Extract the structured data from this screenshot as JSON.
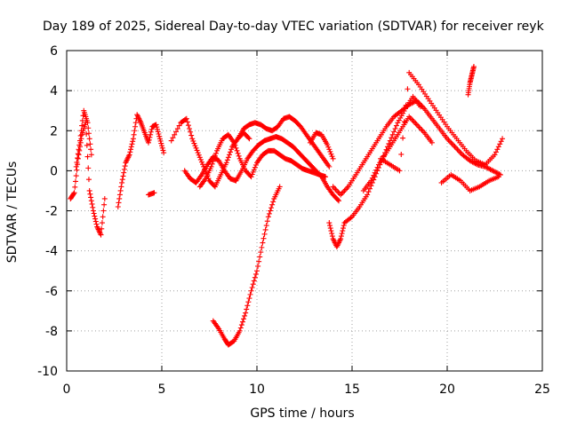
{
  "chart_data": {
    "type": "scatter",
    "title": "Day 189 of 2025, Sidereal Day-to-day VTEC variation (SDTVAR) for receiver reyk",
    "xlabel": "GPS time / hours",
    "ylabel": "SDTVAR / TECUs",
    "xlim": [
      0,
      25
    ],
    "ylim": [
      -10,
      6
    ],
    "xticks": [
      0,
      5,
      10,
      15,
      20,
      25
    ],
    "yticks": [
      -10,
      -8,
      -6,
      -4,
      -2,
      0,
      2,
      4,
      6
    ],
    "xtick_labels": [
      "0",
      "5",
      "10",
      "15",
      "20",
      "25"
    ],
    "ytick_labels": [
      "-10",
      "-8",
      "-6",
      "-4",
      "-2",
      "0",
      "2",
      "4",
      "6"
    ],
    "grid": true,
    "marker": "plus",
    "color": "#ff0000",
    "series": [
      {
        "name": "s1",
        "x": [
          0.2,
          0.4,
          0.6,
          0.8,
          1.0,
          1.2,
          1.4,
          1.6,
          1.8,
          2.0
        ],
        "y": [
          -1.4,
          -1.1,
          0.6,
          1.8,
          2.4,
          -1.0,
          -2.0,
          -2.8,
          -3.2,
          -1.4
        ]
      },
      {
        "name": "s2",
        "x": [
          0.5,
          0.7,
          0.9,
          1.1,
          1.3
        ],
        "y": [
          0.2,
          1.5,
          3.0,
          2.4,
          0.8
        ]
      },
      {
        "name": "s3",
        "x": [
          2.7,
          2.9,
          3.1,
          3.3,
          3.5,
          3.7,
          3.9,
          4.1,
          4.3,
          4.5,
          4.7,
          4.9,
          5.1
        ],
        "y": [
          -1.8,
          -0.6,
          0.4,
          0.8,
          1.6,
          2.8,
          2.4,
          1.9,
          1.4,
          2.2,
          2.3,
          1.6,
          0.9
        ]
      },
      {
        "name": "s4",
        "x": [
          4.3,
          4.6
        ],
        "y": [
          -1.2,
          -1.1
        ]
      },
      {
        "name": "s5",
        "x": [
          5.5,
          6.0,
          6.3,
          6.6,
          6.9,
          7.2,
          7.5,
          7.8,
          8.1,
          8.4,
          8.7,
          9.0,
          9.3,
          9.6
        ],
        "y": [
          1.5,
          2.4,
          2.6,
          1.6,
          0.9,
          0.2,
          -0.5,
          -0.8,
          -0.2,
          0.4,
          1.2,
          1.6,
          1.9,
          1.6
        ]
      },
      {
        "name": "s6",
        "x": [
          6.2,
          6.5,
          6.8,
          7.1,
          7.4,
          7.7,
          8.0,
          8.3,
          8.6,
          8.9,
          9.2,
          9.5,
          9.8,
          10.1,
          10.4,
          10.7,
          11.0,
          11.3,
          11.6,
          11.9,
          12.2,
          12.5,
          12.8,
          13.1,
          13.4,
          13.7,
          14.0,
          14.3
        ],
        "y": [
          0.0,
          -0.4,
          -0.6,
          -0.2,
          0.3,
          0.7,
          0.5,
          0.0,
          -0.4,
          -0.5,
          0.0,
          0.6,
          1.0,
          1.3,
          1.5,
          1.6,
          1.7,
          1.6,
          1.4,
          1.2,
          0.9,
          0.6,
          0.3,
          0.0,
          -0.3,
          -0.8,
          -1.2,
          -1.5
        ]
      },
      {
        "name": "s7",
        "x": [
          7.0,
          7.3,
          7.6,
          7.9,
          8.2,
          8.5,
          8.8,
          9.1,
          9.4,
          9.7,
          10.0,
          10.3,
          10.6,
          10.9,
          11.2,
          11.5,
          11.8,
          12.1,
          12.4,
          12.7,
          13.0,
          13.3,
          13.6
        ],
        "y": [
          -0.8,
          -0.4,
          0.2,
          1.0,
          1.6,
          1.8,
          1.4,
          0.6,
          0.0,
          -0.3,
          0.4,
          0.8,
          1.0,
          1.0,
          0.8,
          0.6,
          0.5,
          0.3,
          0.1,
          0.0,
          -0.1,
          -0.2,
          -0.3
        ]
      },
      {
        "name": "s8",
        "x": [
          9.0,
          9.3,
          9.6,
          9.9,
          10.2,
          10.5,
          10.8,
          11.1,
          11.4,
          11.7,
          12.0,
          12.3,
          12.6,
          12.9,
          13.2,
          13.5,
          13.8
        ],
        "y": [
          1.6,
          2.1,
          2.3,
          2.4,
          2.3,
          2.1,
          2.0,
          2.2,
          2.6,
          2.7,
          2.5,
          2.2,
          1.8,
          1.4,
          1.0,
          0.6,
          0.2
        ]
      },
      {
        "name": "s9",
        "x": [
          12.8,
          13.1,
          13.4,
          13.7,
          14.0
        ],
        "y": [
          1.4,
          1.9,
          1.8,
          1.3,
          0.6
        ]
      },
      {
        "name": "s10",
        "x": [
          7.7,
          8.0,
          8.3,
          8.5,
          8.8,
          9.1,
          9.4,
          9.7,
          10.0,
          10.3,
          10.6,
          10.9,
          11.2
        ],
        "y": [
          -7.5,
          -7.9,
          -8.4,
          -8.7,
          -8.5,
          -8.0,
          -7.1,
          -6.0,
          -5.0,
          -3.6,
          -2.3,
          -1.4,
          -0.8
        ]
      },
      {
        "name": "s11",
        "x": [
          13.8,
          14.0,
          14.2,
          14.4,
          14.6,
          15.0,
          15.4,
          15.8,
          16.2,
          16.6,
          17.0,
          17.4,
          17.8,
          18.2,
          18.6
        ],
        "y": [
          -2.6,
          -3.4,
          -3.8,
          -3.4,
          -2.6,
          -2.3,
          -1.8,
          -1.2,
          -0.3,
          0.6,
          1.5,
          2.4,
          3.1,
          3.7,
          3.2
        ]
      },
      {
        "name": "s12",
        "x": [
          14.0,
          14.4,
          14.8,
          15.2,
          15.6,
          16.0,
          16.4,
          16.8,
          17.2,
          17.6,
          18.0,
          18.4,
          18.8,
          19.2,
          19.6,
          20.0,
          20.4,
          20.8,
          21.2,
          21.6,
          22.0,
          22.4,
          22.8
        ],
        "y": [
          -0.8,
          -1.2,
          -0.8,
          -0.2,
          0.4,
          1.0,
          1.6,
          2.2,
          2.7,
          3.0,
          3.3,
          3.5,
          3.1,
          2.6,
          2.1,
          1.6,
          1.2,
          0.8,
          0.5,
          0.3,
          0.2,
          0.0,
          -0.2
        ]
      },
      {
        "name": "s13",
        "x": [
          15.6,
          16.0,
          16.4,
          16.8,
          17.2,
          17.6,
          18.0,
          18.4,
          18.8,
          19.2
        ],
        "y": [
          -1.0,
          -0.5,
          0.3,
          0.9,
          1.5,
          2.1,
          2.7,
          2.3,
          1.9,
          1.4
        ]
      },
      {
        "name": "s14",
        "x": [
          16.5,
          17.0,
          17.5,
          18.0,
          18.5,
          19.0,
          19.5,
          20.0,
          20.5,
          21.0,
          21.5,
          22.0,
          22.5,
          22.9
        ],
        "y": [
          0.6,
          0.3,
          0.0,
          4.9,
          4.3,
          3.6,
          2.9,
          2.2,
          1.6,
          1.0,
          0.5,
          0.3,
          0.8,
          1.6
        ]
      },
      {
        "name": "s15",
        "x": [
          19.7,
          20.2,
          20.7,
          21.2,
          21.7,
          22.2,
          22.7
        ],
        "y": [
          -0.6,
          -0.2,
          -0.5,
          -1.0,
          -0.8,
          -0.5,
          -0.3
        ]
      },
      {
        "name": "s16",
        "x": [
          21.1,
          21.2,
          21.3,
          21.4
        ],
        "y": [
          3.8,
          4.4,
          4.8,
          5.2
        ]
      }
    ]
  }
}
